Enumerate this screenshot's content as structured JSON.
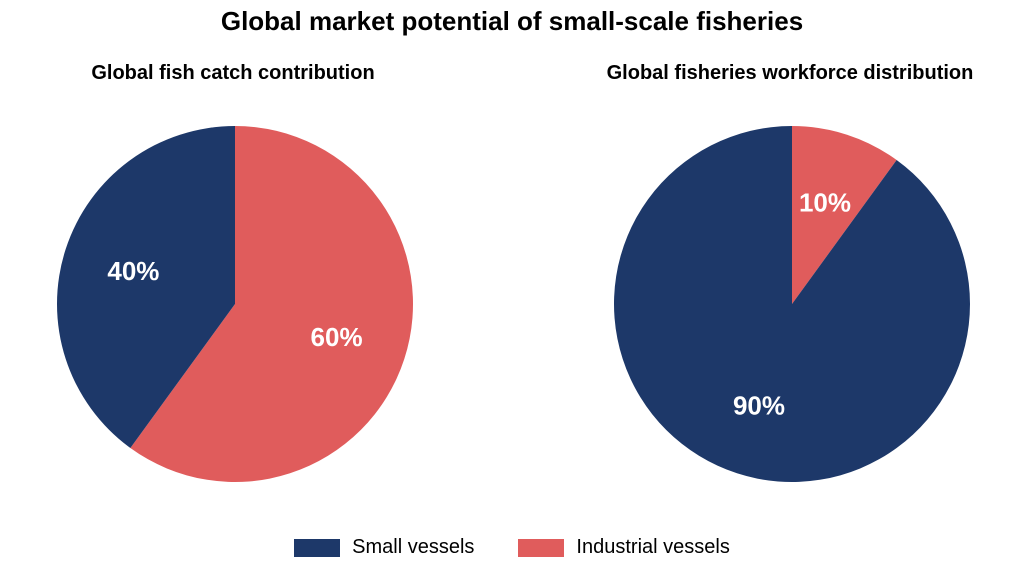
{
  "title": "Global market potential of small-scale fisheries",
  "colors": {
    "small": "#1d3869",
    "industrial": "#e05c5c"
  },
  "legend": [
    {
      "label": "Small vessels",
      "color": "#1d3869"
    },
    {
      "label": "Industrial vessels",
      "color": "#e05c5c"
    }
  ],
  "chart_data": [
    {
      "type": "pie",
      "title": "Global fish catch contribution",
      "slices": [
        {
          "name": "Small vessels",
          "value": 40,
          "label": "40%",
          "color": "#1d3869"
        },
        {
          "name": "Industrial vessels",
          "value": 60,
          "label": "60%",
          "color": "#e05c5c"
        }
      ]
    },
    {
      "type": "pie",
      "title": "Global fisheries workforce distribution",
      "slices": [
        {
          "name": "Small vessels",
          "value": 90,
          "label": "90%",
          "color": "#1d3869"
        },
        {
          "name": "Industrial vessels",
          "value": 10,
          "label": "10%",
          "color": "#e05c5c"
        }
      ]
    }
  ]
}
